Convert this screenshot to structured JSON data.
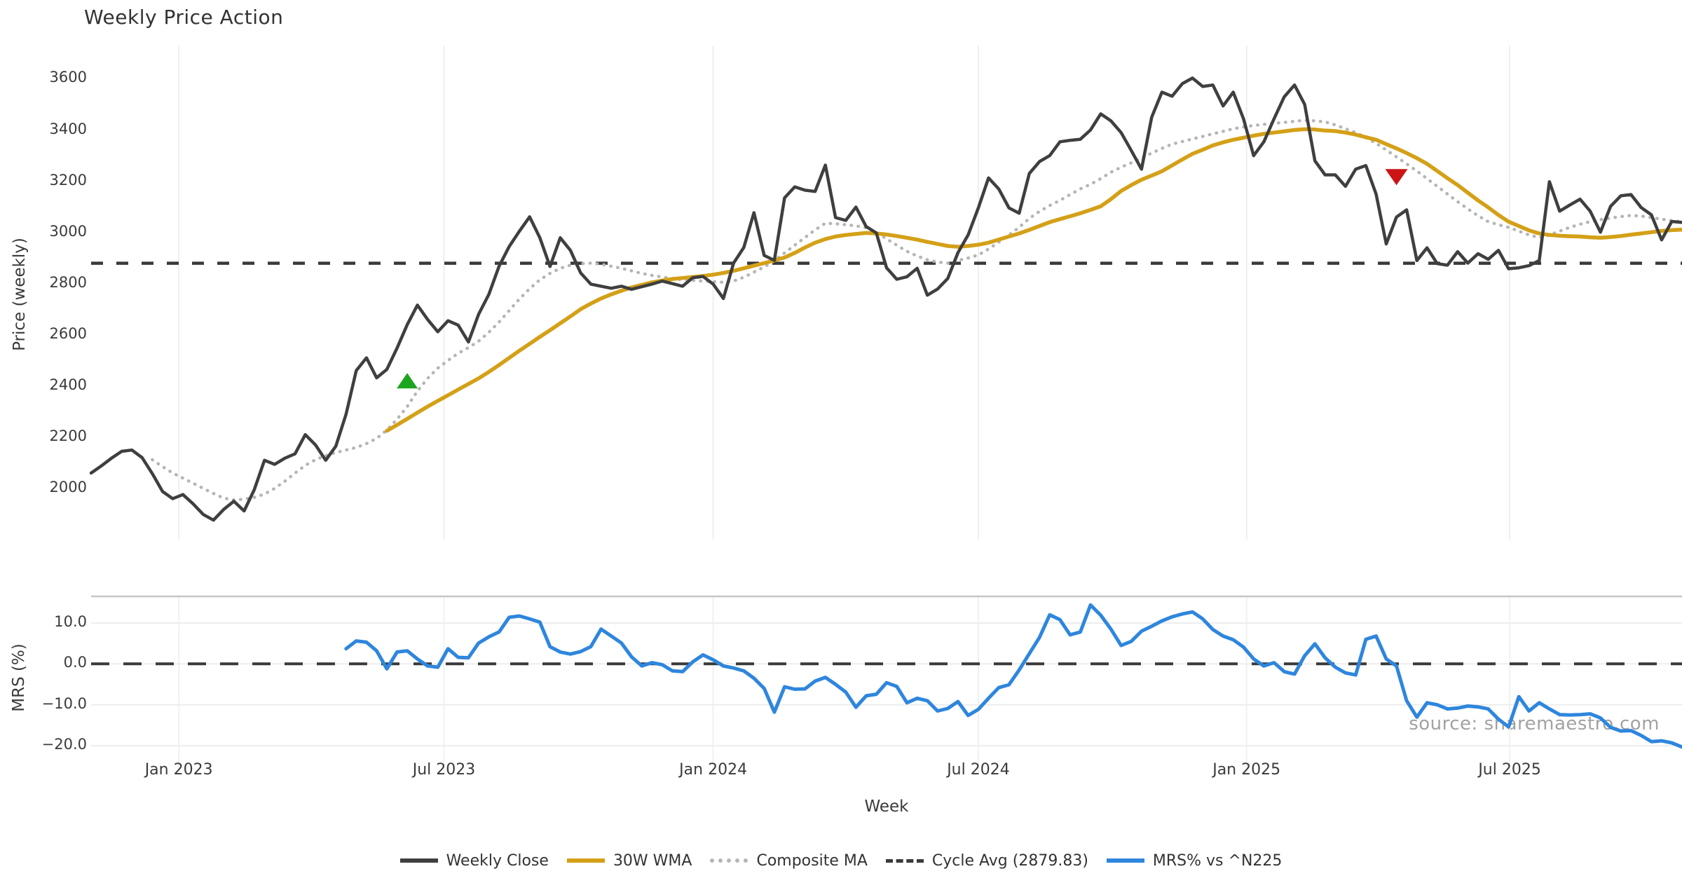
{
  "title": "Weekly Price Action",
  "watermark": "source: sharemaestro.com",
  "axes": {
    "price_label": "Price (weekly)",
    "mrs_label": "MRS (%)",
    "x_label": "Week"
  },
  "legend": {
    "items": [
      {
        "label": "Weekly Close",
        "color": "#3f3f3f",
        "style": "solid"
      },
      {
        "label": "30W WMA",
        "color": "#d4a017",
        "style": "solid"
      },
      {
        "label": "Composite MA",
        "color": "#b5b5b5",
        "style": "dotted"
      },
      {
        "label": "Cycle Avg (2879.83)",
        "color": "#3a3a3a",
        "style": "dashed"
      },
      {
        "label": "MRS% vs ^N225",
        "color": "#2e86dd",
        "style": "solid"
      }
    ]
  },
  "chart_data": [
    {
      "type": "line",
      "panel": "price",
      "title": "Weekly Price Action",
      "ylabel": "Price (weekly)",
      "xlabel": "Week",
      "x_unit": "weeks from 2022-11 through 2025-10",
      "ylim": [
        1800,
        3730
      ],
      "yticks": [
        {
          "label": "3600",
          "value": 3600
        },
        {
          "label": "3400",
          "value": 3400
        },
        {
          "label": "3200",
          "value": 3200
        },
        {
          "label": "3000",
          "value": 3000
        },
        {
          "label": "2800",
          "value": 2800
        },
        {
          "label": "2600",
          "value": 2600
        },
        {
          "label": "2400",
          "value": 2400
        },
        {
          "label": "2200",
          "value": 2200
        },
        {
          "label": "2000",
          "value": 2000
        }
      ],
      "xlim_weeks": [
        0,
        156
      ],
      "xticks": [
        {
          "label": "Jan 2023",
          "week": 8.6
        },
        {
          "label": "Jul 2023",
          "week": 34.6
        },
        {
          "label": "Jan 2024",
          "week": 61.0
        },
        {
          "label": "Jul 2024",
          "week": 87.0
        },
        {
          "label": "Jan 2025",
          "week": 113.3
        },
        {
          "label": "Jul 2025",
          "week": 139.1
        }
      ],
      "grid": "vertical",
      "legend_position": "bottom-center",
      "cycle_avg": {
        "label": "Cycle Avg (2879.83)",
        "value": 2879.83,
        "color": "#3a3a3a",
        "style": "dashed"
      },
      "series": [
        {
          "name": "Weekly Close",
          "color": "#3f3f3f",
          "style": "solid",
          "width": 4.5,
          "start_week": 0,
          "values": [
            2060,
            2088,
            2118,
            2145,
            2150,
            2120,
            2058,
            1988,
            1960,
            1976,
            1940,
            1898,
            1876,
            1918,
            1950,
            1912,
            1995,
            2110,
            2094,
            2118,
            2135,
            2210,
            2170,
            2110,
            2165,
            2290,
            2460,
            2510,
            2432,
            2465,
            2548,
            2640,
            2716,
            2660,
            2612,
            2655,
            2638,
            2572,
            2680,
            2758,
            2868,
            2945,
            3005,
            3061,
            2979,
            2867,
            2979,
            2930,
            2842,
            2798,
            2790,
            2782,
            2790,
            2778,
            2788,
            2798,
            2810,
            2800,
            2790,
            2823,
            2828,
            2798,
            2742,
            2880,
            2941,
            3077,
            2910,
            2891,
            3135,
            3178,
            3165,
            3160,
            3263,
            3058,
            3047,
            3099,
            3023,
            2998,
            2862,
            2817,
            2827,
            2860,
            2755,
            2779,
            2820,
            2921,
            2990,
            3096,
            3213,
            3170,
            3096,
            3075,
            3230,
            3277,
            3300,
            3354,
            3360,
            3364,
            3400,
            3463,
            3436,
            3390,
            3320,
            3247,
            3450,
            3548,
            3532,
            3581,
            3603,
            3570,
            3576,
            3494,
            3548,
            3444,
            3300,
            3354,
            3444,
            3530,
            3576,
            3500,
            3280,
            3225,
            3225,
            3180,
            3247,
            3261,
            3150,
            2955,
            3060,
            3088,
            2890,
            2940,
            2878,
            2872,
            2925,
            2880,
            2917,
            2895,
            2930,
            2858,
            2862,
            2870,
            2890,
            3198,
            3083,
            3107,
            3130,
            3083,
            3001,
            3102,
            3143,
            3148,
            3097,
            3069,
            2971,
            3043,
            3039
          ]
        },
        {
          "name": "30W WMA",
          "color": "#d4a017",
          "style": "solid",
          "width": 5.5,
          "start_week": 29,
          "values": [
            2225,
            2248,
            2272,
            2296,
            2320,
            2342,
            2364,
            2386,
            2408,
            2430,
            2455,
            2482,
            2510,
            2538,
            2565,
            2592,
            2618,
            2645,
            2672,
            2700,
            2722,
            2742,
            2758,
            2772,
            2785,
            2795,
            2805,
            2812,
            2818,
            2822,
            2826,
            2830,
            2835,
            2842,
            2850,
            2860,
            2870,
            2880,
            2891,
            2902,
            2920,
            2941,
            2960,
            2974,
            2984,
            2990,
            2994,
            2998,
            2996,
            2992,
            2986,
            2979,
            2972,
            2963,
            2955,
            2947,
            2944,
            2947,
            2952,
            2960,
            2972,
            2984,
            2996,
            3010,
            3025,
            3040,
            3052,
            3063,
            3075,
            3088,
            3102,
            3130,
            3162,
            3185,
            3206,
            3222,
            3239,
            3262,
            3285,
            3307,
            3323,
            3340,
            3352,
            3362,
            3370,
            3378,
            3385,
            3390,
            3395,
            3400,
            3403,
            3402,
            3398,
            3396,
            3390,
            3382,
            3372,
            3362,
            3345,
            3328,
            3310,
            3290,
            3268,
            3240,
            3212,
            3185,
            3155,
            3125,
            3098,
            3068,
            3042,
            3025,
            3008,
            2996,
            2990,
            2987,
            2985,
            2984,
            2981,
            2979,
            2982,
            2986,
            2991,
            2996,
            3001,
            3006,
            3009,
            3011
          ]
        },
        {
          "name": "Composite MA",
          "color": "#b5b5b5",
          "style": "dotted",
          "width": 4.5,
          "start_week": 6,
          "values": [
            2112,
            2085,
            2060,
            2040,
            2020,
            2000,
            1980,
            1962,
            1955,
            1958,
            1965,
            1978,
            2000,
            2028,
            2060,
            2090,
            2112,
            2128,
            2140,
            2150,
            2160,
            2175,
            2195,
            2228,
            2270,
            2320,
            2380,
            2430,
            2470,
            2500,
            2528,
            2550,
            2575,
            2610,
            2650,
            2695,
            2740,
            2780,
            2815,
            2840,
            2860,
            2872,
            2878,
            2880,
            2876,
            2868,
            2860,
            2850,
            2840,
            2832,
            2826,
            2820,
            2815,
            2812,
            2810,
            2808,
            2805,
            2810,
            2825,
            2845,
            2865,
            2890,
            2920,
            2950,
            2980,
            3010,
            3036,
            3034,
            3030,
            3026,
            3018,
            3000,
            2975,
            2950,
            2926,
            2908,
            2893,
            2884,
            2880,
            2890,
            2900,
            2912,
            2935,
            2962,
            2990,
            3020,
            3055,
            3082,
            3105,
            3125,
            3148,
            3170,
            3188,
            3210,
            3235,
            3255,
            3272,
            3290,
            3310,
            3328,
            3345,
            3355,
            3365,
            3375,
            3385,
            3395,
            3405,
            3412,
            3418,
            3422,
            3426,
            3430,
            3434,
            3438,
            3436,
            3432,
            3420,
            3405,
            3390,
            3370,
            3348,
            3322,
            3295,
            3268,
            3240,
            3210,
            3180,
            3150,
            3120,
            3092,
            3065,
            3042,
            3030,
            3020,
            3005,
            2990,
            2980,
            2990,
            3005,
            3020,
            3032,
            3042,
            3050,
            3056,
            3062,
            3066,
            3064,
            3058,
            3052,
            3046,
            3042
          ]
        }
      ],
      "markers": [
        {
          "type": "triangle-up",
          "week": 31,
          "price": 2418,
          "color": "#1ca520"
        },
        {
          "type": "triangle-down",
          "week": 128,
          "price": 3220,
          "color": "#cc1414"
        }
      ]
    },
    {
      "type": "line",
      "panel": "mrs",
      "ylabel": "MRS (%)",
      "ylim": [
        -27,
        16.5
      ],
      "yticks": [
        {
          "label": "10.0",
          "value": 10
        },
        {
          "label": "0.0",
          "value": 0
        },
        {
          "label": "−10.0",
          "value": -10
        },
        {
          "label": "−20.0",
          "value": -20
        }
      ],
      "zero_line": {
        "value": 0,
        "color": "#3a3a3a",
        "style": "dashed"
      },
      "grid": "horizontal+vertical",
      "series": [
        {
          "name": "MRS% vs ^N225",
          "color": "#2e86dd",
          "style": "solid",
          "width": 5,
          "start_week": 25,
          "values": [
            3.7,
            5.6,
            5.3,
            3.2,
            -1.2,
            2.9,
            3.2,
            1.2,
            -0.5,
            -0.8,
            3.7,
            1.6,
            1.5,
            5.1,
            6.6,
            7.8,
            11.4,
            11.7,
            11.0,
            10.2,
            4.2,
            2.9,
            2.4,
            3.0,
            4.2,
            8.5,
            6.8,
            5.1,
            1.7,
            -0.5,
            0.3,
            -0.2,
            -1.7,
            -1.9,
            0.5,
            2.2,
            1.0,
            -0.5,
            -1.0,
            -1.7,
            -3.5,
            -6.0,
            -11.8,
            -5.6,
            -6.2,
            -6.1,
            -4.2,
            -3.3,
            -5.0,
            -6.9,
            -10.6,
            -7.8,
            -7.4,
            -4.6,
            -5.5,
            -9.5,
            -8.4,
            -9.0,
            -11.5,
            -10.9,
            -9.2,
            -12.6,
            -11.1,
            -8.4,
            -5.8,
            -5.1,
            -1.5,
            2.5,
            6.5,
            12.0,
            10.8,
            7.1,
            7.8,
            14.4,
            11.9,
            8.5,
            4.5,
            5.5,
            8.0,
            9.2,
            10.5,
            11.5,
            12.2,
            12.7,
            11.0,
            8.4,
            6.8,
            5.9,
            4.1,
            1.2,
            -0.5,
            0.3,
            -1.9,
            -2.5,
            2.0,
            4.9,
            1.5,
            -0.8,
            -2.2,
            -2.7,
            6.0,
            6.8,
            1.2,
            -0.5,
            -9.0,
            -13.0,
            -9.5,
            -10.0,
            -11.0,
            -10.8,
            -10.3,
            -10.5,
            -11.0,
            -13.5,
            -15.4,
            -8.0,
            -11.5,
            -9.5,
            -11.0,
            -12.4,
            -12.5,
            -12.4,
            -12.2,
            -13.2,
            -15.5,
            -16.4,
            -16.3,
            -17.5,
            -19.0,
            -18.8,
            -19.3,
            -20.3
          ]
        }
      ]
    }
  ]
}
